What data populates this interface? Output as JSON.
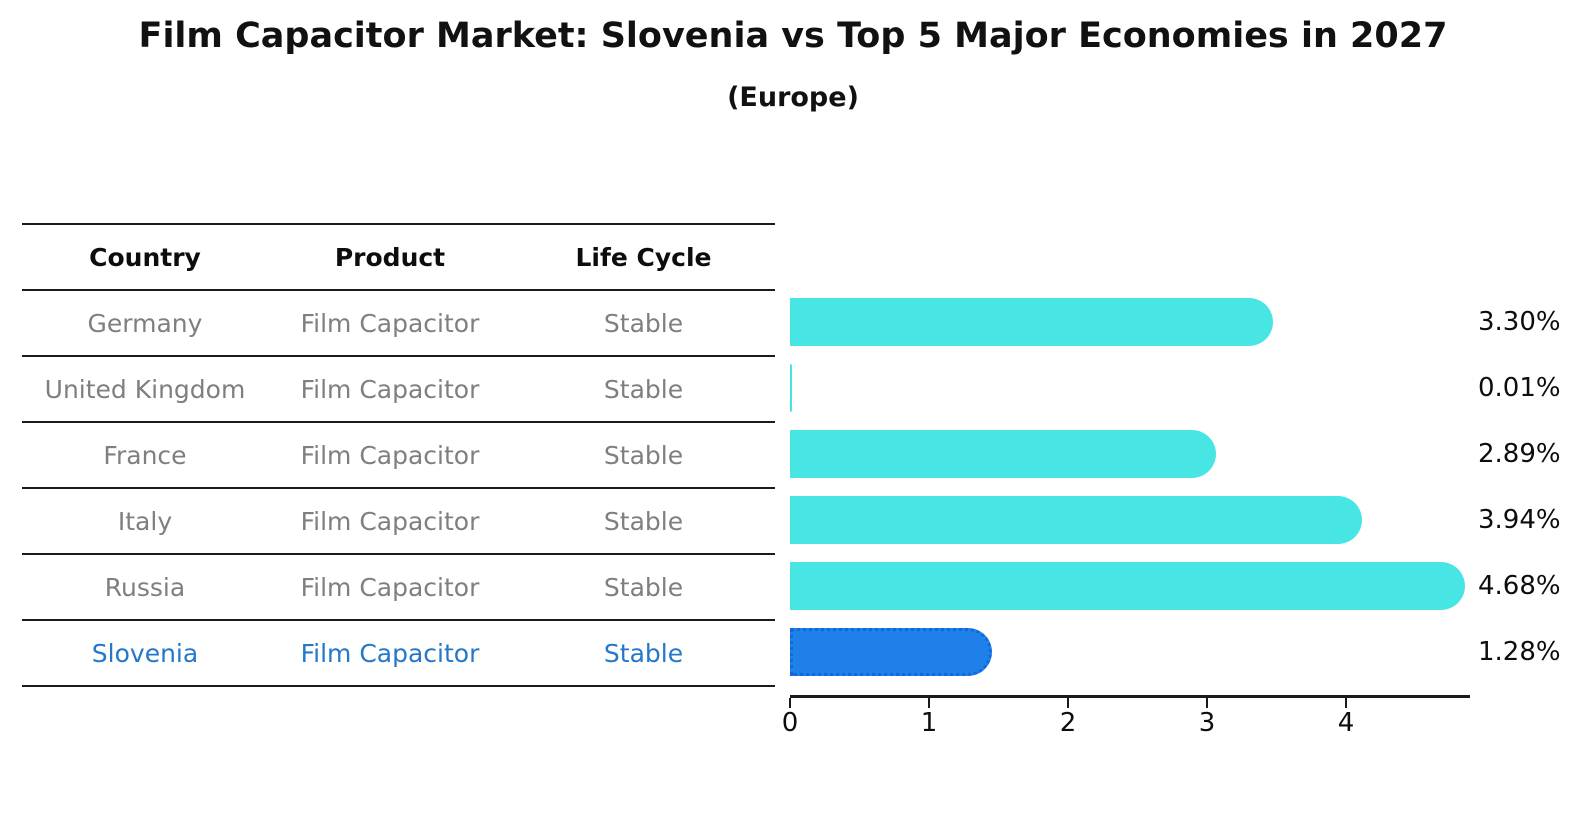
{
  "header": {
    "title": "Film Capacitor Market: Slovenia vs Top 5 Major Economies in 2027",
    "subtitle": "(Europe)"
  },
  "table": {
    "columns": [
      "Country",
      "Product",
      "Life Cycle"
    ],
    "rows": [
      {
        "country": "Germany",
        "product": "Film Capacitor",
        "life_cycle": "Stable",
        "highlight": false
      },
      {
        "country": "United Kingdom",
        "product": "Film Capacitor",
        "life_cycle": "Stable",
        "highlight": false
      },
      {
        "country": "France",
        "product": "Film Capacitor",
        "life_cycle": "Stable",
        "highlight": false
      },
      {
        "country": "Italy",
        "product": "Film Capacitor",
        "life_cycle": "Stable",
        "highlight": false
      },
      {
        "country": "Russia",
        "product": "Film Capacitor",
        "life_cycle": "Stable",
        "highlight": false
      },
      {
        "country": "Slovenia",
        "product": "Film Capacitor",
        "life_cycle": "Stable",
        "highlight": true
      }
    ]
  },
  "chart_data": {
    "type": "bar",
    "orientation": "horizontal",
    "title": "Film Capacitor Market: Slovenia vs Top 5 Major Economies in 2027",
    "subtitle": "(Europe)",
    "categories": [
      "Germany",
      "United Kingdom",
      "France",
      "Italy",
      "Russia",
      "Slovenia"
    ],
    "values": [
      3.3,
      0.01,
      2.89,
      3.94,
      4.68,
      1.28
    ],
    "value_labels": [
      "3.30%",
      "0.01%",
      "2.89%",
      "3.94%",
      "4.68%",
      "1.28%"
    ],
    "unit": "%",
    "xticks": [
      "0",
      "1",
      "2",
      "3",
      "4"
    ],
    "xlim": [
      0,
      4.9
    ],
    "grid": false,
    "legend": "none",
    "highlight_index": 5,
    "colors": {
      "bar": "#48e5e5",
      "highlight_bar": "#1e80e8",
      "highlight_bar_border": "#1269d6",
      "highlight_text": "#2577c8",
      "table_text": "#7f7f7f",
      "header_text": "#0d0d0d",
      "label_text": "#0d0d0d"
    }
  }
}
